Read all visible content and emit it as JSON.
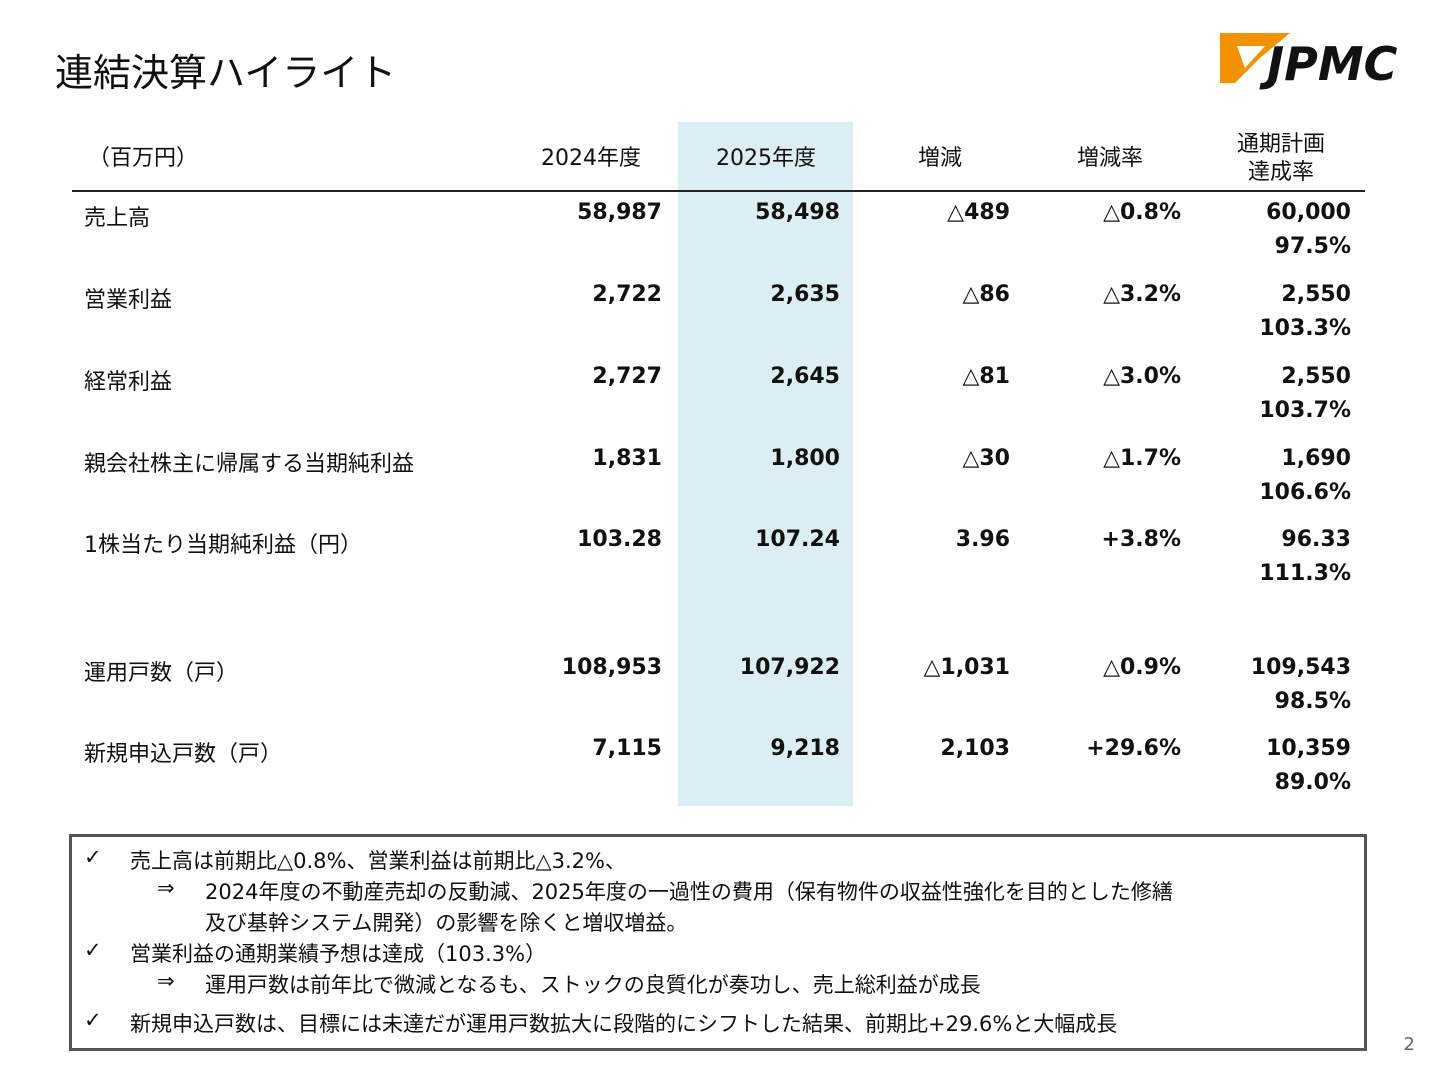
{
  "header": {
    "title": "連結決算ハイライト",
    "logo": "JPMC"
  },
  "table": {
    "columns": [
      "（百万円）",
      "2024年度",
      "2025年度",
      "増減",
      "増減率",
      [
        "通期計画",
        "達成率"
      ]
    ],
    "rows": [
      {
        "label": "売上高",
        "cells": [
          "58,987",
          "58,498",
          "△489",
          "△0.8%",
          "60,000"
        ],
        "achievement": "97.5%"
      },
      {
        "label": "営業利益",
        "cells": [
          "2,722",
          "2,635",
          "△86",
          "△3.2%",
          "2,550"
        ],
        "achievement": "103.3%"
      },
      {
        "label": "経常利益",
        "cells": [
          "2,727",
          "2,645",
          "△81",
          "△3.0%",
          "2,550"
        ],
        "achievement": "103.7%"
      },
      {
        "label": "親会社株主に帰属する当期純利益",
        "cells": [
          "1,831",
          "1,800",
          "△30",
          "△1.7%",
          "1,690"
        ],
        "achievement": "106.6%"
      },
      {
        "label": "1株当たり当期純利益（円）",
        "cells": [
          "103.28",
          "107.24",
          "3.96",
          "+3.8%",
          "96.33"
        ],
        "achievement": "111.3%"
      },
      {
        "label": "運用戸数（戸）",
        "cells": [
          "108,953",
          "107,922",
          "△1,031",
          "△0.9%",
          "109,543"
        ],
        "achievement": "98.5%"
      },
      {
        "label": "新規申込戸数（戸）",
        "cells": [
          "7,115",
          "9,218",
          "2,103",
          "+29.6%",
          "10,359"
        ],
        "achievement": "89.0%"
      }
    ]
  },
  "notes": [
    {
      "text": "売上高は前期比△0.8%、営業利益は前期比△3.2%、",
      "sub": [
        "2024年度の不動産売却の反動減、2025年度の一過性の費用（保有物件の収益性強化を目的とした修繕",
        "及び基幹システム開発）の影響を除くと増収増益。"
      ]
    },
    {
      "text": "営業利益の通期業績予想は達成（103.3%）",
      "sub": [
        "運用戸数は前年比で微減となるも、ストックの良質化が奏功し、売上総利益が成長"
      ]
    },
    {
      "text": "新規申込戸数は、目標には未達だが運用戸数拡大に段階的にシフトした結果、前期比+29.6%と大幅成長",
      "sub": []
    }
  ],
  "page_number": "2"
}
